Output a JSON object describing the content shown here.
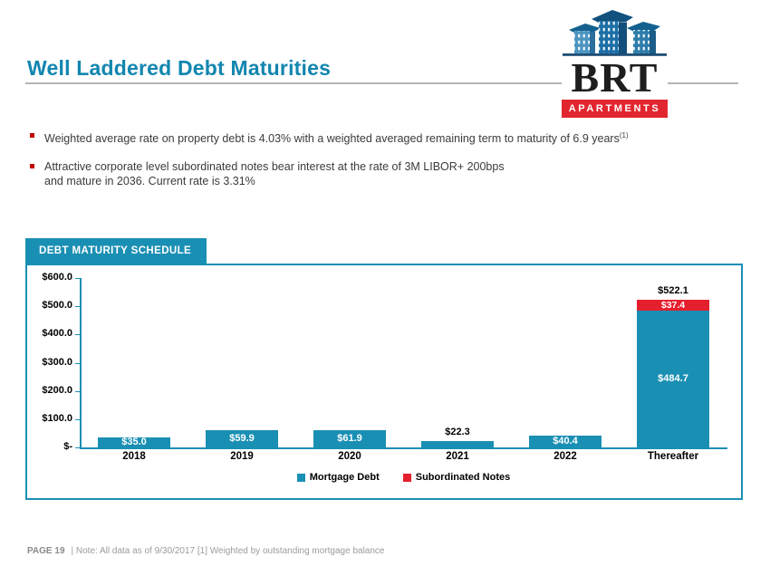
{
  "title": "Well Laddered Debt Maturities",
  "logo": {
    "icon": "brt-buildings-icon",
    "name": "BRT",
    "banner": "APARTMENTS"
  },
  "bullets": {
    "b1": {
      "text": "Weighted average rate on property debt is 4.03% with a weighted averaged remaining term to maturity of 6.9 years",
      "sup": "(1)"
    },
    "b2": {
      "line1": "Attractive corporate level subordinated notes bear interest at the rate of 3M LIBOR+ 200bps",
      "line2": "and mature in 2036. Current rate is 3.31%"
    }
  },
  "chart_header": "DEBT MATURITY SCHEDULE",
  "chart_data": {
    "type": "bar",
    "stacked": true,
    "title": "DEBT MATURITY SCHEDULE",
    "categories": [
      "2018",
      "2019",
      "2020",
      "2021",
      "2022",
      "Thereafter"
    ],
    "series": [
      {
        "name": "Mortgage Debt",
        "color": "#1A8FB4",
        "values": [
          35.0,
          59.9,
          61.9,
          22.3,
          40.4,
          484.7
        ],
        "labels": [
          "$35.0",
          "$59.9",
          "$61.9",
          "$22.3",
          "$40.4",
          "$484.7"
        ]
      },
      {
        "name": "Subordinated Notes",
        "color": "#E5202E",
        "values": [
          0,
          0,
          0,
          0,
          0,
          37.4
        ],
        "labels": [
          "",
          "",
          "",
          "",
          "",
          "$37.4"
        ]
      }
    ],
    "total_labels": [
      "",
      "",
      "",
      "",
      "",
      "$522.1"
    ],
    "y_ticks": [
      "$600.0",
      "$500.0",
      "$400.0",
      "$300.0",
      "$200.0",
      "$100.0",
      "$-"
    ],
    "ylim": [
      0,
      600
    ],
    "grid": false,
    "legend_position": "bottom",
    "legend": [
      "Mortgage Debt",
      "Subordinated Notes"
    ]
  },
  "footer": {
    "page": "PAGE 19",
    "note": "| Note: All data as of 9/30/2017 [1] Weighted by outstanding mortgage balance"
  },
  "colors": {
    "accent_teal": "#1A8FB4",
    "title_teal": "#1286AF",
    "accent_red": "#E5202E",
    "bullet_red": "#C00000"
  }
}
